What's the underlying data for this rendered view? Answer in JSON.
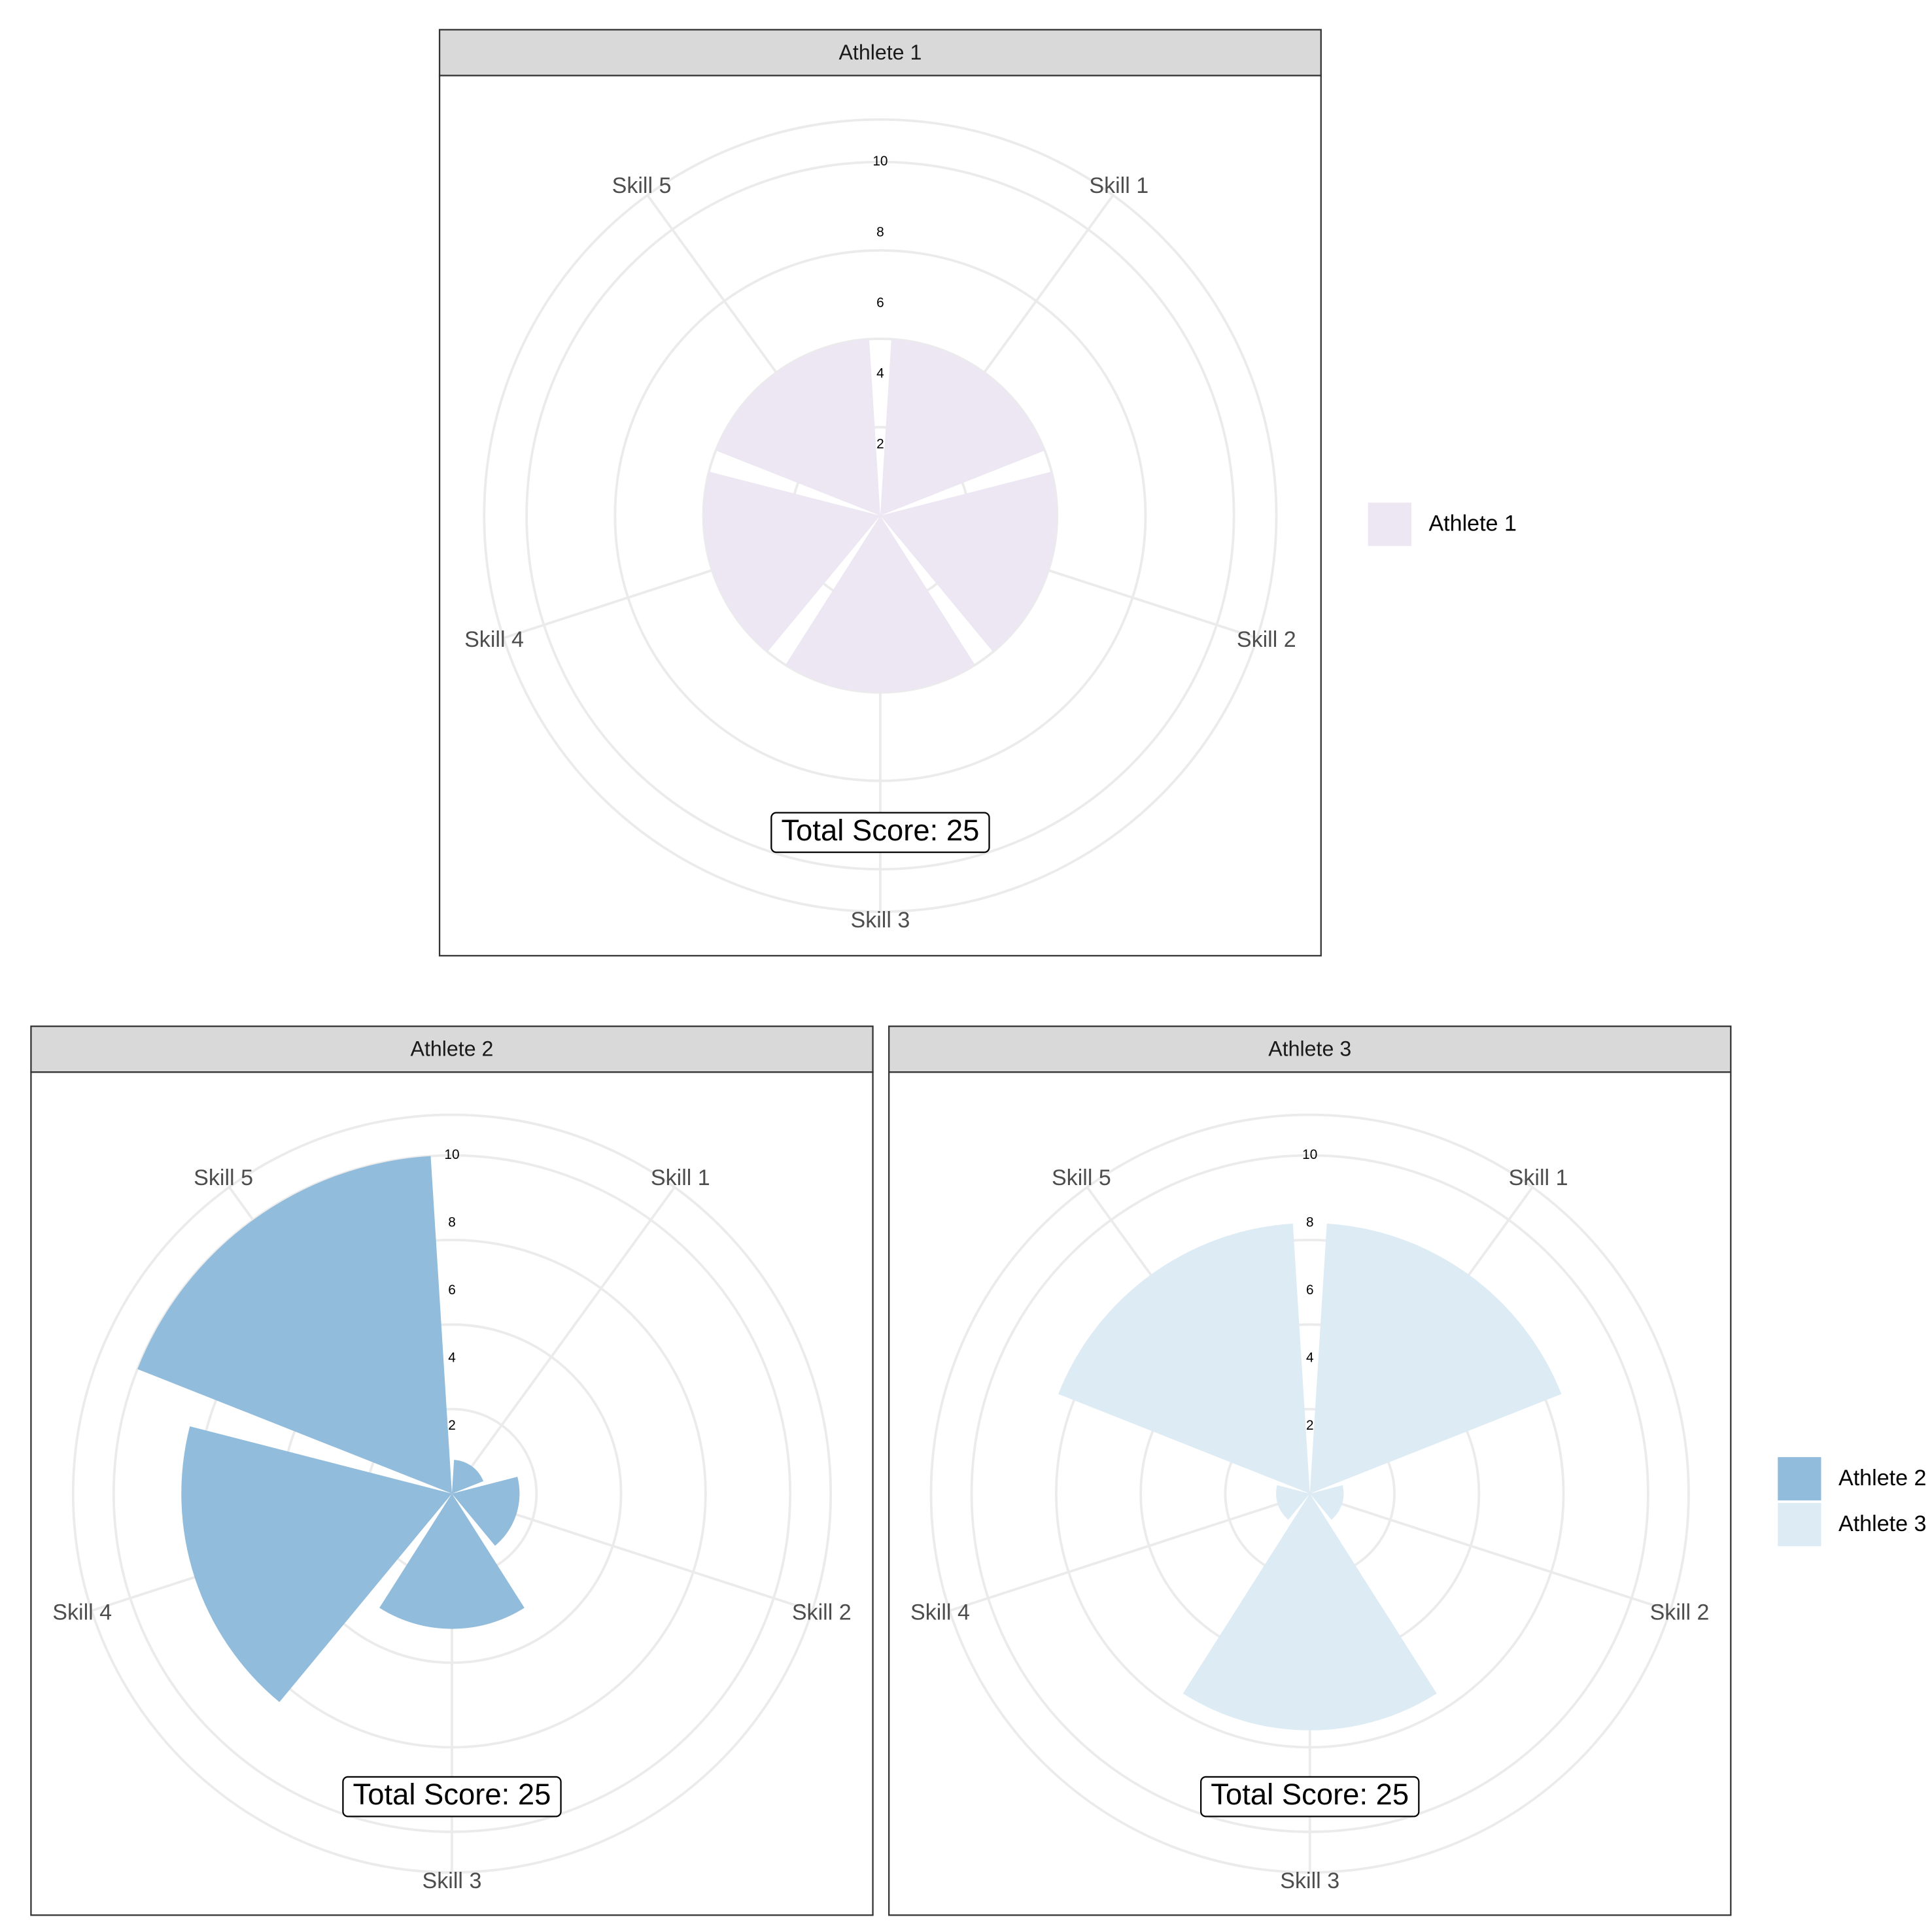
{
  "chart_data": [
    {
      "type": "polar_bar",
      "title": "Athlete 1",
      "categories": [
        "Skill 1",
        "Skill 2",
        "Skill 3",
        "Skill 4",
        "Skill 5"
      ],
      "series": [
        {
          "name": "Athlete 1",
          "color": "#ece7f2",
          "values": [
            5,
            5,
            5,
            5,
            5
          ]
        }
      ],
      "ylim": [
        0,
        11.2
      ],
      "yticks": [
        2,
        4,
        6,
        8,
        10
      ],
      "grid_circles": [
        2.5,
        5,
        7.5,
        10
      ],
      "annotation": "Total Score: 25"
    },
    {
      "type": "polar_bar",
      "title": "Athlete 2",
      "categories": [
        "Skill 1",
        "Skill 2",
        "Skill 3",
        "Skill 4",
        "Skill 5"
      ],
      "series": [
        {
          "name": "Athlete 2",
          "color": "#92bcdb",
          "values": [
            1,
            2,
            4,
            8,
            10
          ]
        }
      ],
      "ylim": [
        0,
        11.2
      ],
      "yticks": [
        2,
        4,
        6,
        8,
        10
      ],
      "grid_circles": [
        2.5,
        5,
        7.5,
        10
      ],
      "annotation": "Total Score: 25"
    },
    {
      "type": "polar_bar",
      "title": "Athlete 3",
      "categories": [
        "Skill 1",
        "Skill 2",
        "Skill 3",
        "Skill 4",
        "Skill 5"
      ],
      "series": [
        {
          "name": "Athlete 3",
          "color": "#ddebf5",
          "values": [
            8,
            1,
            7,
            1,
            8
          ]
        }
      ],
      "ylim": [
        0,
        11.2
      ],
      "yticks": [
        2,
        4,
        6,
        8,
        10
      ],
      "grid_circles": [
        2.5,
        5,
        7.5,
        10
      ],
      "annotation": "Total Score: 25"
    }
  ]
}
